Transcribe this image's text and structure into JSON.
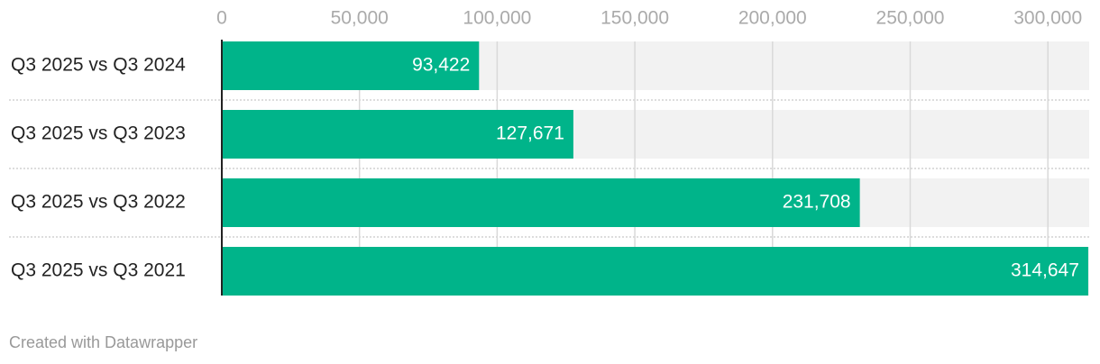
{
  "chart_data": {
    "type": "bar",
    "orientation": "horizontal",
    "categories": [
      "Q3 2025 vs Q3 2024",
      "Q3 2025 vs Q3 2023",
      "Q3 2025 vs Q3 2022",
      "Q3 2025 vs Q3 2021"
    ],
    "values": [
      93422,
      127671,
      231708,
      314647
    ],
    "value_labels": [
      "93,422",
      "127,671",
      "231,708",
      "314,647"
    ],
    "color": "#00b48a",
    "xlim": [
      0,
      315000
    ],
    "xticks": [
      0,
      {
        "value": 50000,
        "label": "50,000"
      },
      {
        "value": 100000,
        "label": "100,000"
      },
      {
        "value": 150000,
        "label": "150,000"
      },
      {
        "value": 200000,
        "label": "200,000"
      },
      {
        "value": 250000,
        "label": "250,000"
      },
      {
        "value": 300000,
        "label": "300,000"
      }
    ],
    "grid": true,
    "footer": "Created with Datawrapper"
  }
}
